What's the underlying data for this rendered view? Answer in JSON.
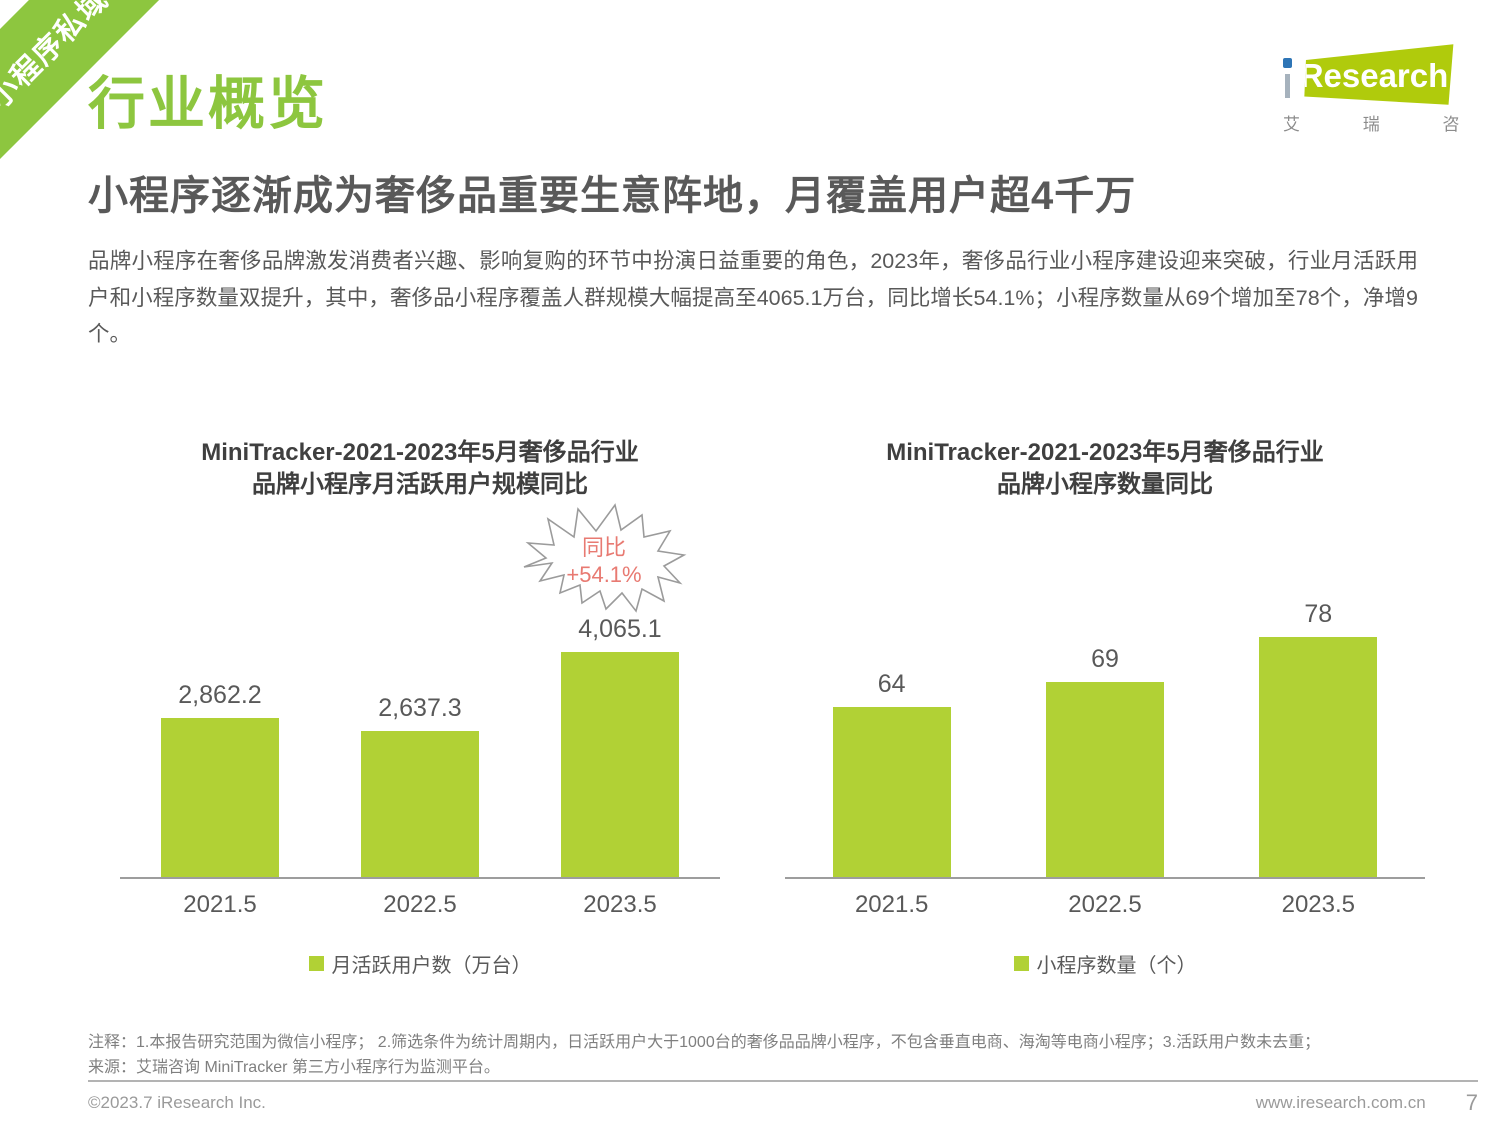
{
  "ribbon": {
    "label": "小程序私域"
  },
  "logo": {
    "text_full": "iResearch",
    "text_research": "Research",
    "subtext": "艾 瑞 咨 询"
  },
  "page": {
    "section_title": "行业概览",
    "headline": "小程序逐渐成为奢侈品重要生意阵地，月覆盖用户超4千万",
    "paragraph": "品牌小程序在奢侈品牌激发消费者兴趣、影响复购的环节中扮演日益重要的角色，2023年，奢侈品行业小程序建设迎来突破，行业月活跃用户和小程序数量双提升，其中，奢侈品小程序覆盖人群规模大幅提高至4065.1万台，同比增长54.1%；小程序数量从69个增加至78个，净增9个。"
  },
  "chart_data": [
    {
      "type": "bar",
      "title": "MiniTracker-2021-2023年5月奢侈品行业\n品牌小程序月活跃用户规模同比",
      "categories": [
        "2021.5",
        "2022.5",
        "2023.5"
      ],
      "values": [
        2862.2,
        2637.3,
        4065.1
      ],
      "value_labels": [
        "2,862.2",
        "2,637.3",
        "4,065.1"
      ],
      "ylim": [
        0,
        4600
      ],
      "grid": false,
      "legend": "月活跃用户数（万台）",
      "legend_position": "bottom",
      "bar_color": "#b1d135",
      "annotation": {
        "lines": [
          "同比",
          "+54.1%"
        ],
        "target_category": "2023.5"
      }
    },
    {
      "type": "bar",
      "title": "MiniTracker-2021-2023年5月奢侈品行业\n品牌小程序数量同比",
      "categories": [
        "2021.5",
        "2022.5",
        "2023.5"
      ],
      "values": [
        64,
        69,
        78
      ],
      "value_labels": [
        "64",
        "69",
        "78"
      ],
      "ylim": [
        30,
        81
      ],
      "grid": false,
      "legend": "小程序数量（个）",
      "legend_position": "bottom",
      "bar_color": "#b1d135"
    }
  ],
  "notes": {
    "line1": "注释：1.本报告研究范围为微信小程序； 2.筛选条件为统计周期内，日活跃用户大于1000台的奢侈品品牌小程序，不包含垂直电商、海淘等电商小程序；3.活跃用户数未去重；",
    "line2": "来源：艾瑞咨询 MiniTracker 第三方小程序行为监测平台。"
  },
  "footer": {
    "copyright": "©2023.7 iResearch Inc.",
    "site": "www.iresearch.com.cn",
    "page_number": "7"
  },
  "colors": {
    "accent_green": "#8dc63f",
    "bar_green": "#b1d135",
    "logo_green": "#b0cb0c",
    "logo_dot_blue": "#2e75b6",
    "annotation_red": "#e87a72",
    "text_gray": "#595959"
  }
}
